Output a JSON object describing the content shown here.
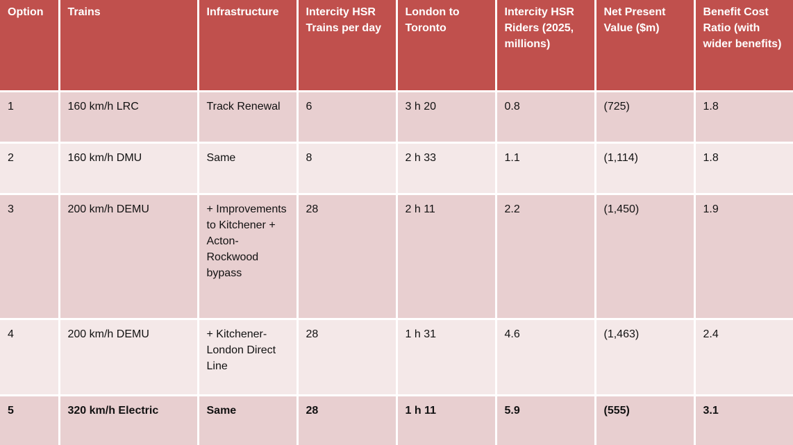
{
  "headers": [
    "Option",
    "Trains",
    "Infrastructure",
    "Intercity HSR Trains per day",
    "London to Toronto",
    "Intercity HSR Riders (2025, millions)",
    "Net Present Value ($m)",
    "Benefit Cost Ratio (with wider benefits)"
  ],
  "rows": [
    [
      "1",
      "160 km/h LRC",
      "Track Renewal",
      "6",
      "3 h 20",
      "0.8",
      "(725)",
      "1.8"
    ],
    [
      "2",
      "160 km/h DMU",
      "Same",
      "8",
      "2 h 33",
      "1.1",
      "(1,114)",
      "1.8"
    ],
    [
      "3",
      "200 km/h DEMU",
      "+ Improvements to Kitchener + Acton-Rockwood bypass",
      "28",
      "2 h 11",
      "2.2",
      "(1,450)",
      "1.9"
    ],
    [
      "4",
      "200 km/h DEMU",
      "+ Kitchener-London Direct Line",
      "28",
      "1 h 31",
      "4.6",
      "(1,463)",
      "2.4"
    ],
    [
      "5",
      "320 km/h Electric",
      "Same",
      "28",
      "1 h 11",
      "5.9",
      "(555)",
      "3.1"
    ]
  ],
  "colors": {
    "header_bg": "#c0504d",
    "row_odd_bg": "#e8cfd0",
    "row_even_bg": "#f4e8e8"
  }
}
